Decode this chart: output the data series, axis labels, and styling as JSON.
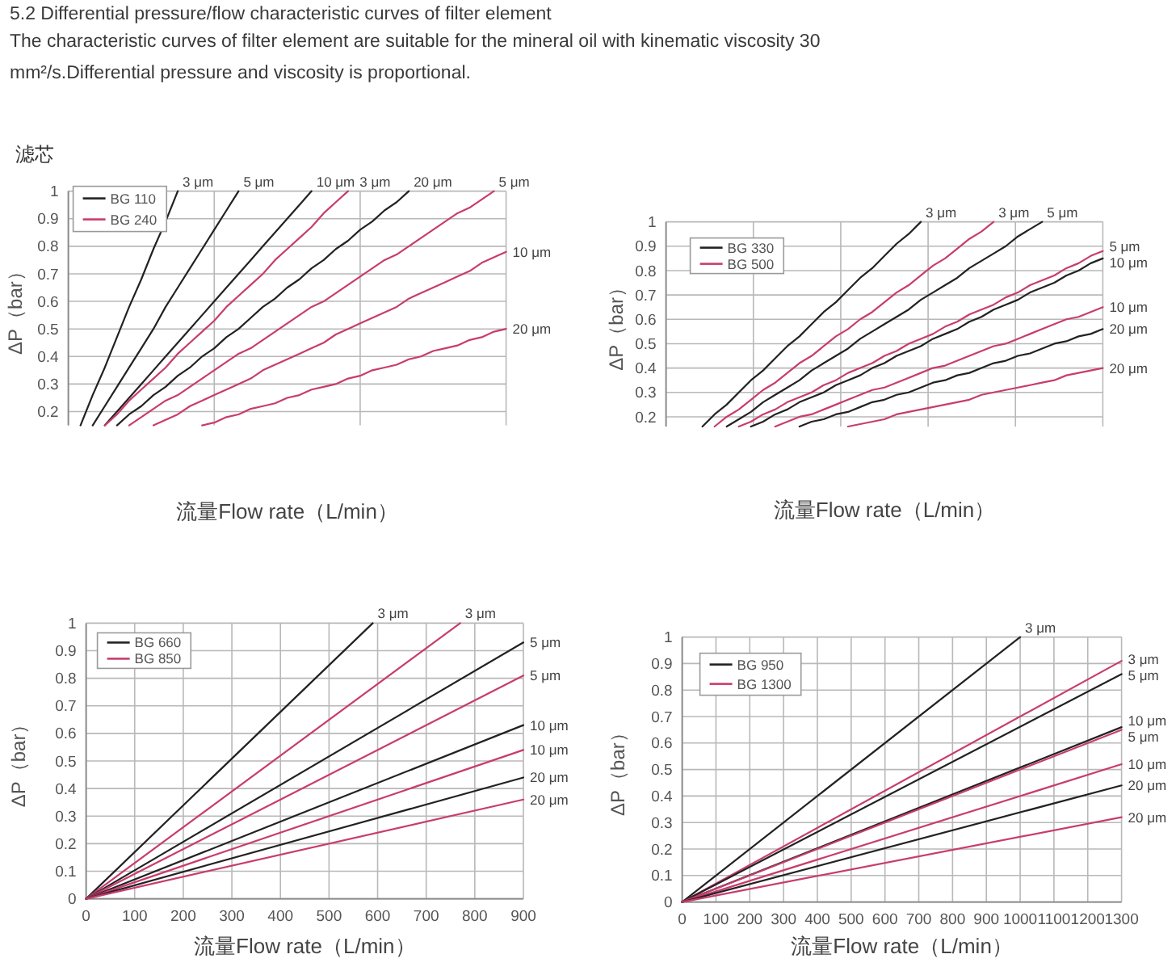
{
  "chart_data": [
    {
      "type": "line",
      "title": "5.2 Differential pressure/flow characteristic curves of filter element",
      "subtitle": "The characteristic curves of filter element are suitable for the mineral oil with kinematic viscosity 30 mm²/s.Differential pressure and viscosity is proportional.",
      "xlabel": "流量Flow rate（L/min）",
      "ylabel": "ΔP（bar）",
      "categories": [
        null,
        null,
        null,
        null,
        null,
        null,
        null,
        null,
        null,
        null,
        null,
        null,
        null,
        null,
        null,
        null,
        null,
        null,
        null,
        null,
        null,
        null,
        null,
        null,
        null,
        null,
        null,
        null,
        null,
        null,
        null,
        null,
        null,
        null,
        null,
        null,
        null
      ],
      "ylim": [
        0.15,
        1
      ],
      "yticks": [
        0.2,
        0.3,
        0.4,
        0.5,
        0.6,
        0.7,
        0.8,
        0.9,
        1
      ],
      "tick_labels": "y",
      "grid": true,
      "legend": "top left",
      "series": [
        {
          "name": "BG 110",
          "color": "#222222",
          "values": [
            null,
            0.15,
            0.26,
            0.36,
            0.47,
            0.58,
            0.68,
            0.79,
            0.89,
            1,
            null,
            null,
            null,
            null,
            null,
            null,
            null,
            null,
            null,
            null,
            null,
            null,
            null,
            null,
            null,
            null,
            null,
            null,
            null,
            null,
            null,
            null,
            null,
            null,
            null,
            null,
            null
          ]
        },
        {
          "color": "#222222",
          "values": [
            null,
            null,
            0.15,
            0.22,
            0.29,
            0.36,
            0.43,
            0.5,
            0.58,
            0.65,
            0.72,
            0.79,
            0.86,
            0.93,
            1,
            null,
            null,
            null,
            null,
            null,
            null,
            null,
            null,
            null,
            null,
            null,
            null,
            null,
            null,
            null,
            null,
            null,
            null,
            null,
            null,
            null,
            null
          ]
        },
        {
          "color": "#222222",
          "values": [
            null,
            null,
            null,
            0.15,
            0.2,
            0.25,
            0.3,
            0.35,
            0.4,
            0.45,
            0.5,
            0.55,
            0.6,
            0.65,
            0.7,
            0.75,
            0.8,
            0.85,
            0.9,
            0.95,
            1,
            null,
            null,
            null,
            null,
            null,
            null,
            null,
            null,
            null,
            null,
            null,
            null,
            null,
            null,
            null,
            null
          ]
        },
        {
          "name": "BG 240",
          "color": "#c83c6e",
          "values": [
            null,
            null,
            null,
            0.15,
            0.19,
            0.24,
            0.28,
            0.32,
            0.36,
            0.41,
            0.45,
            0.49,
            0.53,
            0.58,
            0.62,
            0.66,
            0.7,
            0.75,
            0.79,
            0.83,
            0.87,
            0.92,
            0.96,
            1,
            null,
            null,
            null,
            null,
            null,
            null,
            null,
            null,
            null,
            null,
            null,
            null,
            null
          ]
        },
        {
          "color": "#222222",
          "values": [
            null,
            null,
            null,
            null,
            0.15,
            0.19,
            0.22,
            0.26,
            0.29,
            0.33,
            0.36,
            0.4,
            0.43,
            0.47,
            0.5,
            0.54,
            0.58,
            0.61,
            0.65,
            0.68,
            0.72,
            0.75,
            0.79,
            0.82,
            0.86,
            0.89,
            0.93,
            0.96,
            1,
            null,
            null,
            null,
            null,
            null,
            null,
            null,
            null
          ]
        },
        {
          "color": "#c83c6e",
          "values": [
            null,
            null,
            null,
            null,
            null,
            0.15,
            0.18,
            0.21,
            0.24,
            0.26,
            0.29,
            0.32,
            0.35,
            0.38,
            0.41,
            0.43,
            0.46,
            0.49,
            0.52,
            0.55,
            0.58,
            0.6,
            0.63,
            0.66,
            0.69,
            0.72,
            0.75,
            0.77,
            0.8,
            0.83,
            0.86,
            0.89,
            0.92,
            0.94,
            0.97,
            1,
            null
          ]
        },
        {
          "color": "#c83c6e",
          "values": [
            null,
            null,
            null,
            null,
            null,
            null,
            null,
            0.15,
            0.17,
            0.19,
            0.22,
            0.24,
            0.26,
            0.28,
            0.3,
            0.32,
            0.35,
            0.37,
            0.39,
            0.41,
            0.43,
            0.45,
            0.48,
            0.5,
            0.52,
            0.54,
            0.56,
            0.58,
            0.61,
            0.63,
            0.65,
            0.67,
            0.69,
            0.71,
            0.74,
            0.76,
            0.78
          ]
        },
        {
          "color": "#c83c6e",
          "values": [
            null,
            null,
            null,
            null,
            null,
            null,
            null,
            null,
            null,
            null,
            null,
            0.15,
            0.16,
            0.18,
            0.19,
            0.21,
            0.22,
            0.23,
            0.25,
            0.26,
            0.28,
            0.29,
            0.3,
            0.32,
            0.33,
            0.35,
            0.36,
            0.37,
            0.39,
            0.4,
            0.42,
            0.43,
            0.44,
            0.46,
            0.47,
            0.49,
            0.5
          ]
        }
      ],
      "annotations": [
        "3 μm",
        "5 μm",
        "10 μm",
        "3 μm",
        "20 μm",
        "5 μm",
        "10 μm",
        "20 μm",
        "滤芯"
      ]
    },
    {
      "type": "line",
      "xlabel": "流量Flow rate（L/min）",
      "ylabel": "ΔP（bar）",
      "categories": [
        null,
        null,
        null,
        null,
        null,
        null,
        null,
        null,
        null,
        null,
        null,
        null,
        null,
        null,
        null,
        null,
        null,
        null,
        null,
        null,
        null,
        null,
        null,
        null,
        null,
        null,
        null,
        null,
        null,
        null,
        null,
        null,
        null,
        null,
        null,
        null,
        null
      ],
      "ylim": [
        0.16,
        1
      ],
      "yticks": [
        0.2,
        0.3,
        0.4,
        0.5,
        0.6,
        0.7,
        0.8,
        0.9,
        1
      ],
      "tick_labels": "y",
      "grid": true,
      "legend": "top left",
      "series": [
        {
          "name": "BG 330",
          "color": "#222222",
          "values": [
            null,
            null,
            null,
            0.16,
            0.21,
            0.25,
            0.3,
            0.35,
            0.39,
            0.44,
            0.49,
            0.53,
            0.58,
            0.63,
            0.67,
            0.72,
            0.77,
            0.81,
            0.86,
            0.91,
            0.95,
            1,
            null,
            null,
            null,
            null,
            null,
            null,
            null,
            null,
            null,
            null,
            null,
            null,
            null,
            null,
            null
          ]
        },
        {
          "name": "BG 500",
          "color": "#c83c6e",
          "values": [
            null,
            null,
            null,
            null,
            0.16,
            0.2,
            0.23,
            0.27,
            0.31,
            0.34,
            0.38,
            0.42,
            0.45,
            0.49,
            0.53,
            0.56,
            0.6,
            0.63,
            0.67,
            0.71,
            0.74,
            0.78,
            0.82,
            0.85,
            0.89,
            0.93,
            0.96,
            1,
            null,
            null,
            null,
            null,
            null,
            null,
            null,
            null,
            null
          ]
        },
        {
          "color": "#222222",
          "values": [
            null,
            null,
            null,
            null,
            null,
            0.16,
            0.19,
            0.22,
            0.26,
            0.29,
            0.32,
            0.35,
            0.39,
            0.42,
            0.45,
            0.48,
            0.52,
            0.55,
            0.58,
            0.61,
            0.64,
            0.68,
            0.71,
            0.74,
            0.77,
            0.81,
            0.84,
            0.87,
            0.9,
            0.94,
            0.97,
            1,
            null,
            null,
            null,
            null,
            null
          ]
        },
        {
          "color": "#c83c6e",
          "values": [
            null,
            null,
            null,
            null,
            null,
            null,
            0.16,
            0.18,
            0.21,
            0.23,
            0.26,
            0.28,
            0.3,
            0.33,
            0.35,
            0.38,
            0.4,
            0.42,
            0.45,
            0.47,
            0.5,
            0.52,
            0.54,
            0.57,
            0.59,
            0.62,
            0.64,
            0.66,
            0.69,
            0.71,
            0.74,
            0.76,
            0.78,
            0.81,
            0.83,
            0.86,
            0.88
          ]
        },
        {
          "color": "#222222",
          "values": [
            null,
            null,
            null,
            null,
            null,
            null,
            null,
            0.16,
            0.18,
            0.21,
            0.23,
            0.26,
            0.28,
            0.3,
            0.33,
            0.35,
            0.37,
            0.4,
            0.42,
            0.45,
            0.47,
            0.49,
            0.52,
            0.54,
            0.56,
            0.59,
            0.61,
            0.64,
            0.66,
            0.68,
            0.71,
            0.73,
            0.75,
            0.78,
            0.8,
            0.83,
            0.85
          ]
        },
        {
          "color": "#c83c6e",
          "values": [
            null,
            null,
            null,
            null,
            null,
            null,
            null,
            null,
            null,
            0.16,
            0.18,
            0.2,
            0.21,
            0.23,
            0.25,
            0.27,
            0.29,
            0.31,
            0.32,
            0.34,
            0.36,
            0.38,
            0.4,
            0.41,
            0.43,
            0.45,
            0.47,
            0.49,
            0.5,
            0.52,
            0.54,
            0.56,
            0.58,
            0.6,
            0.61,
            0.63,
            0.65
          ]
        },
        {
          "color": "#222222",
          "values": [
            null,
            null,
            null,
            null,
            null,
            null,
            null,
            null,
            null,
            null,
            null,
            0.16,
            0.18,
            0.19,
            0.21,
            0.22,
            0.24,
            0.26,
            0.27,
            0.29,
            0.3,
            0.32,
            0.34,
            0.35,
            0.37,
            0.38,
            0.4,
            0.42,
            0.43,
            0.45,
            0.46,
            0.48,
            0.5,
            0.51,
            0.53,
            0.54,
            0.56
          ]
        },
        {
          "color": "#c83c6e",
          "values": [
            null,
            null,
            null,
            null,
            null,
            null,
            null,
            null,
            null,
            null,
            null,
            null,
            null,
            null,
            null,
            0.16,
            0.17,
            0.18,
            0.19,
            0.21,
            0.22,
            0.23,
            0.24,
            0.25,
            0.26,
            0.27,
            0.29,
            0.3,
            0.31,
            0.32,
            0.33,
            0.34,
            0.35,
            0.37,
            0.38,
            0.39,
            0.4
          ]
        }
      ],
      "annotations": [
        "3 μm",
        "3 μm",
        "5 μm",
        "5 μm",
        "10 μm",
        "10 μm",
        "20 μm",
        "20 μm"
      ]
    },
    {
      "type": "line",
      "xlabel": "流量Flow rate（L/min）",
      "ylabel": "ΔP（bar）",
      "xlim": [
        0,
        900
      ],
      "xticks": [
        0,
        100,
        200,
        300,
        400,
        500,
        600,
        700,
        800,
        900
      ],
      "ylim": [
        0,
        1
      ],
      "yticks": [
        0,
        0.1,
        0.2,
        0.3,
        0.4,
        0.5,
        0.6,
        0.7,
        0.8,
        0.9,
        1
      ],
      "grid": true,
      "legend": "top left",
      "series": [
        {
          "name": "BG 660",
          "color": "#222222",
          "x": [
            0,
            590
          ],
          "values": [
            0,
            1
          ]
        },
        {
          "name": "BG 850",
          "color": "#c83c6e",
          "x": [
            0,
            770
          ],
          "values": [
            0,
            1
          ]
        },
        {
          "color": "#222222",
          "x": [
            0,
            900
          ],
          "values": [
            0,
            0.93
          ]
        },
        {
          "color": "#c83c6e",
          "x": [
            0,
            900
          ],
          "values": [
            0,
            0.81
          ]
        },
        {
          "color": "#222222",
          "x": [
            0,
            900
          ],
          "values": [
            0,
            0.63
          ]
        },
        {
          "color": "#c83c6e",
          "x": [
            0,
            900
          ],
          "values": [
            0,
            0.54
          ]
        },
        {
          "color": "#222222",
          "x": [
            0,
            900
          ],
          "values": [
            0,
            0.44
          ]
        },
        {
          "color": "#c83c6e",
          "x": [
            0,
            900
          ],
          "values": [
            0,
            0.36
          ]
        }
      ],
      "annotations": [
        {
          "text": "3 μm",
          "x": 590,
          "y": 1
        },
        {
          "text": "3 μm",
          "x": 770,
          "y": 1
        },
        {
          "text": "5 μm",
          "x": 900,
          "y": 0.93
        },
        {
          "text": "5 μm",
          "x": 900,
          "y": 0.81
        },
        {
          "text": "10 μm",
          "x": 900,
          "y": 0.63
        },
        {
          "text": "10 μm",
          "x": 900,
          "y": 0.54
        },
        {
          "text": "20 μm",
          "x": 900,
          "y": 0.44
        },
        {
          "text": "20 μm",
          "x": 900,
          "y": 0.36
        }
      ]
    },
    {
      "type": "line",
      "xlabel": "流量Flow rate（L/min）",
      "ylabel": "ΔP（bar）",
      "xlim": [
        0,
        1300
      ],
      "xticks": [
        0,
        100,
        200,
        300,
        400,
        500,
        600,
        700,
        800,
        900,
        1000,
        1100,
        1200,
        1300
      ],
      "ylim": [
        0,
        1
      ],
      "yticks": [
        0,
        0.1,
        0.2,
        0.3,
        0.4,
        0.5,
        0.6,
        0.7,
        0.8,
        0.9,
        1
      ],
      "grid": true,
      "legend": "top left",
      "series": [
        {
          "name": "BG 950",
          "color": "#222222",
          "x": [
            0,
            1000
          ],
          "values": [
            0,
            1
          ]
        },
        {
          "name": "BG 1300",
          "color": "#c83c6e",
          "x": [
            0,
            1300
          ],
          "values": [
            0,
            0.91
          ]
        },
        {
          "color": "#222222",
          "x": [
            0,
            1300
          ],
          "values": [
            0,
            0.86
          ]
        },
        {
          "color": "#222222",
          "x": [
            0,
            1300
          ],
          "values": [
            0,
            0.66
          ]
        },
        {
          "color": "#c83c6e",
          "x": [
            0,
            1300
          ],
          "values": [
            0,
            0.65
          ]
        },
        {
          "color": "#c83c6e",
          "x": [
            0,
            1300
          ],
          "values": [
            0,
            0.52
          ]
        },
        {
          "color": "#222222",
          "x": [
            0,
            1300
          ],
          "values": [
            0,
            0.44
          ]
        },
        {
          "color": "#c83c6e",
          "x": [
            0,
            1300
          ],
          "values": [
            0,
            0.32
          ]
        }
      ],
      "annotations": [
        {
          "text": "3 μm",
          "x": 1000,
          "y": 1
        },
        {
          "text": "3 μm",
          "x": 1300,
          "y": 0.91
        },
        {
          "text": "5 μm",
          "x": 1300,
          "y": 0.86
        },
        {
          "text": "10 μm",
          "x": 1300,
          "y": 0.66
        },
        {
          "text": "5 μm",
          "x": 1300,
          "y": 0.65
        },
        {
          "text": "10 μm",
          "x": 1300,
          "y": 0.52
        },
        {
          "text": "20 μm",
          "x": 1300,
          "y": 0.44
        },
        {
          "text": "20 μm",
          "x": 1300,
          "y": 0.32
        }
      ]
    }
  ]
}
